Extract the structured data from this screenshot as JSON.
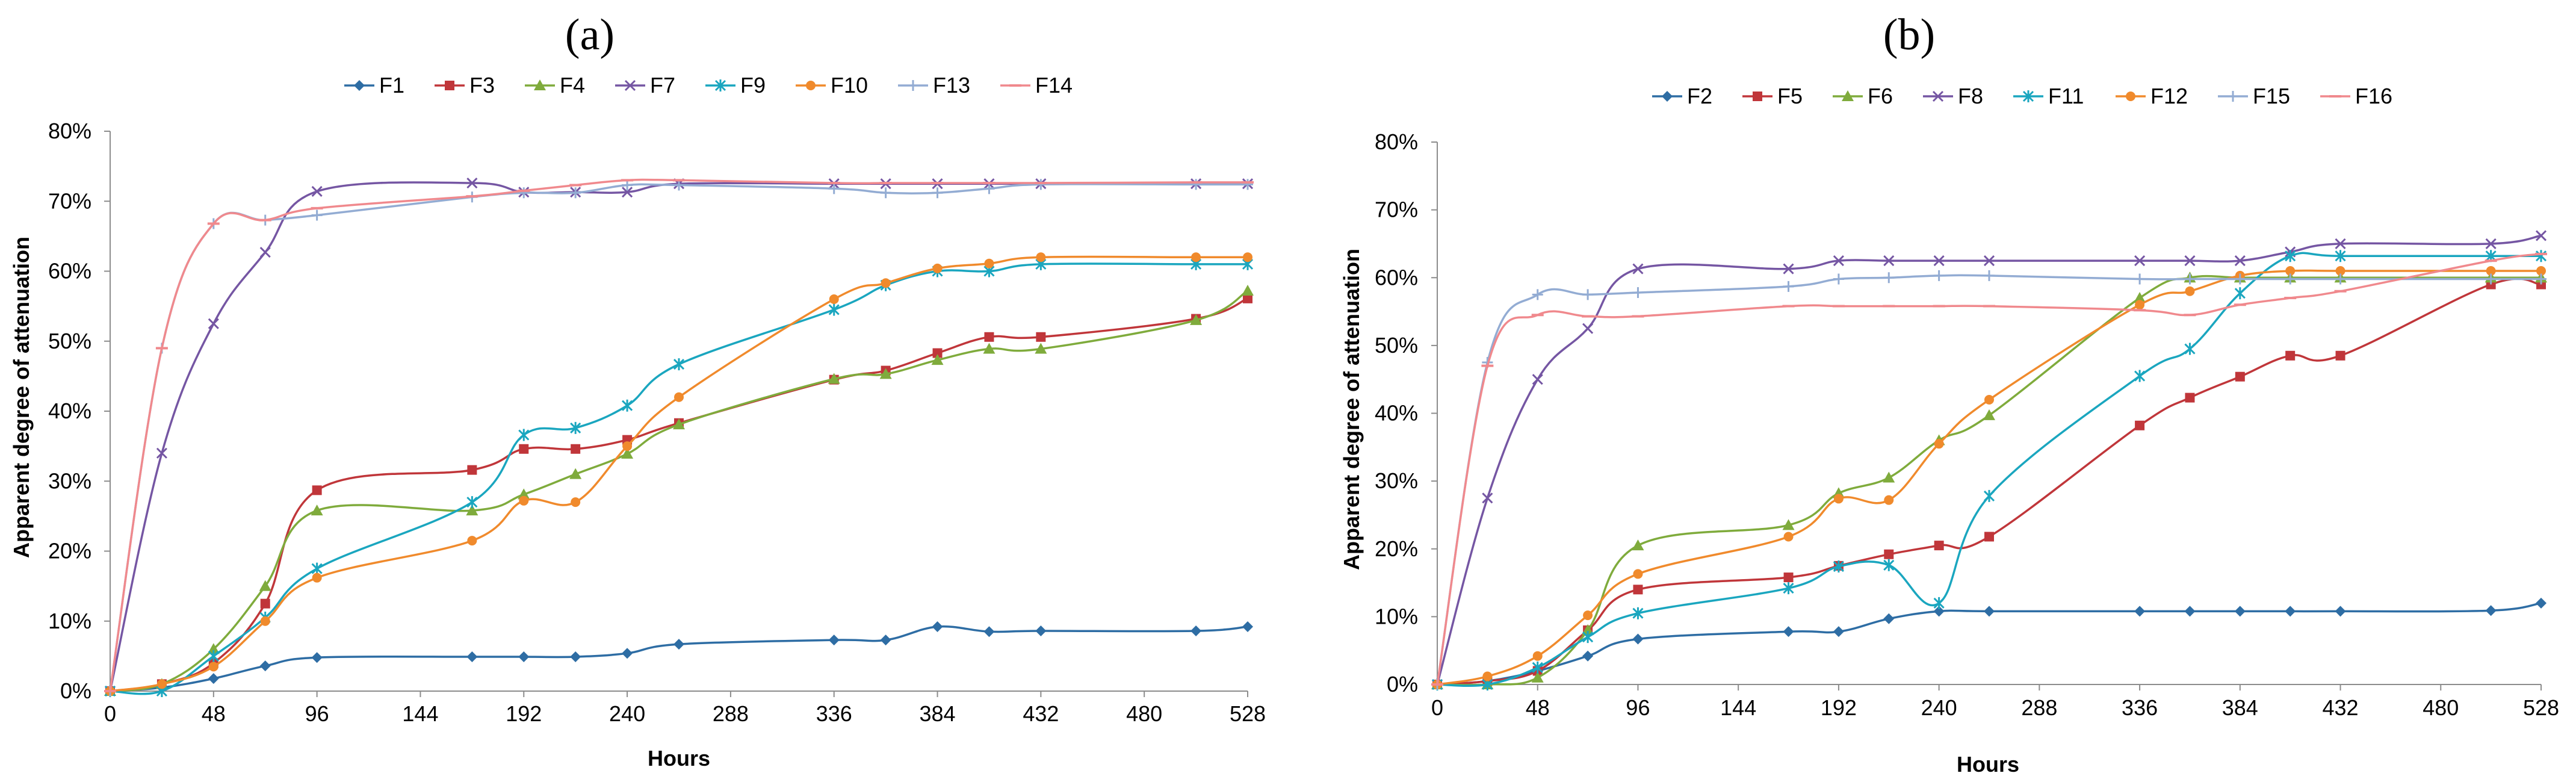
{
  "chart_data": [
    {
      "type": "line",
      "panel_label": "(a)",
      "title": "",
      "xlabel": "Hours",
      "ylabel": "Apparent degree of attenuation",
      "xlim": [
        0,
        528
      ],
      "ylim": [
        0,
        80
      ],
      "x_ticks": [
        "0",
        "48",
        "96",
        "144",
        "192",
        "240",
        "288",
        "336",
        "384",
        "432",
        "480",
        "528"
      ],
      "y_ticks": [
        "0%",
        "10%",
        "20%",
        "30%",
        "40%",
        "50%",
        "60%",
        "70%",
        "80%"
      ],
      "grid": false,
      "legend_position": "top",
      "series": [
        {
          "name": "F1",
          "color": "#2e6da4",
          "marker": "diamond",
          "x": [
            0,
            24,
            48,
            72,
            96,
            168,
            192,
            216,
            240,
            264,
            336,
            360,
            384,
            408,
            432,
            504,
            528
          ],
          "values": [
            0,
            0.5,
            1.8,
            3.6,
            4.8,
            4.9,
            4.9,
            4.9,
            5.4,
            6.7,
            7.3,
            7.3,
            9.2,
            8.5,
            8.6,
            8.6,
            9.2
          ]
        },
        {
          "name": "F3",
          "color": "#c0363a",
          "marker": "square",
          "x": [
            0,
            24,
            48,
            72,
            96,
            168,
            192,
            216,
            240,
            264,
            336,
            360,
            384,
            408,
            432,
            504,
            528
          ],
          "values": [
            0,
            1,
            4,
            12.5,
            28.7,
            31.6,
            34.6,
            34.6,
            35.9,
            38.3,
            44.5,
            45.8,
            48.3,
            50.6,
            50.6,
            53.2,
            56.1
          ]
        },
        {
          "name": "F4",
          "color": "#7fab3c",
          "marker": "triangle",
          "x": [
            0,
            24,
            48,
            72,
            96,
            168,
            192,
            216,
            240,
            264,
            336,
            360,
            384,
            408,
            432,
            504,
            528
          ],
          "values": [
            0,
            1,
            6,
            15,
            25.8,
            25.8,
            28.1,
            31,
            33.9,
            38.1,
            44.6,
            45.3,
            47.3,
            48.9,
            48.9,
            53,
            57.2
          ]
        },
        {
          "name": "F7",
          "color": "#7556a3",
          "marker": "x",
          "x": [
            0,
            24,
            48,
            72,
            96,
            168,
            192,
            216,
            240,
            264,
            336,
            360,
            384,
            408,
            432,
            504,
            528
          ],
          "values": [
            0,
            34,
            52.5,
            62.7,
            71.4,
            72.6,
            71.3,
            71.3,
            71.3,
            72.5,
            72.5,
            72.5,
            72.5,
            72.5,
            72.5,
            72.5,
            72.5
          ]
        },
        {
          "name": "F9",
          "color": "#1aa6bf",
          "marker": "asterisk",
          "x": [
            0,
            24,
            48,
            72,
            96,
            168,
            192,
            216,
            240,
            264,
            336,
            360,
            384,
            408,
            432,
            504,
            528
          ],
          "values": [
            0,
            0,
            5,
            10.5,
            17.5,
            27,
            36.6,
            37.6,
            40.8,
            46.7,
            54.5,
            58,
            60,
            60,
            61,
            61,
            61
          ]
        },
        {
          "name": "F10",
          "color": "#f08a2c",
          "marker": "circle",
          "x": [
            0,
            24,
            48,
            72,
            96,
            168,
            192,
            216,
            240,
            264,
            336,
            360,
            384,
            408,
            432,
            504,
            528
          ],
          "values": [
            0,
            1,
            3.5,
            10,
            16.2,
            21.5,
            27.2,
            27,
            35,
            42,
            56,
            58.3,
            60.4,
            61.1,
            62,
            62,
            62
          ]
        },
        {
          "name": "F13",
          "color": "#93acd3",
          "marker": "plus",
          "x": [
            0,
            24,
            48,
            72,
            96,
            168,
            192,
            216,
            240,
            264,
            336,
            360,
            384,
            408,
            432,
            504,
            528
          ],
          "values": [
            0,
            49,
            66.8,
            67.3,
            68,
            70.6,
            71.2,
            71.2,
            72.3,
            72.3,
            71.8,
            71.2,
            71.2,
            71.8,
            72.4,
            72.4,
            72.4
          ]
        },
        {
          "name": "F14",
          "color": "#f0898d",
          "marker": "dash",
          "x": [
            0,
            24,
            48,
            72,
            96,
            168,
            192,
            216,
            240,
            264,
            336,
            360,
            384,
            408,
            432,
            504,
            528
          ],
          "values": [
            0,
            49,
            66.8,
            67.3,
            69,
            70.7,
            71.5,
            72.3,
            73,
            73,
            72.6,
            72.6,
            72.6,
            72.6,
            72.6,
            72.7,
            72.7
          ]
        }
      ]
    },
    {
      "type": "line",
      "panel_label": "(b)",
      "title": "",
      "xlabel": "Hours",
      "ylabel": "Apparent degree of attenuation",
      "xlim": [
        0,
        528
      ],
      "ylim": [
        0,
        80
      ],
      "x_ticks": [
        "0",
        "48",
        "96",
        "144",
        "192",
        "240",
        "288",
        "336",
        "384",
        "432",
        "480",
        "528"
      ],
      "y_ticks": [
        "0%",
        "10%",
        "20%",
        "30%",
        "40%",
        "50%",
        "60%",
        "70%",
        "80%"
      ],
      "grid": false,
      "legend_position": "top",
      "series": [
        {
          "name": "F2",
          "color": "#2e6da4",
          "marker": "diamond",
          "x": [
            0,
            24,
            48,
            72,
            96,
            168,
            192,
            216,
            240,
            264,
            336,
            360,
            384,
            408,
            432,
            504,
            528
          ],
          "values": [
            0,
            0.5,
            2,
            4.2,
            6.7,
            7.8,
            7.8,
            9.7,
            10.8,
            10.8,
            10.8,
            10.8,
            10.8,
            10.8,
            10.8,
            10.9,
            12
          ]
        },
        {
          "name": "F5",
          "color": "#c0363a",
          "marker": "square",
          "x": [
            0,
            24,
            48,
            72,
            96,
            168,
            192,
            216,
            240,
            264,
            336,
            360,
            384,
            408,
            432,
            504,
            528
          ],
          "values": [
            0,
            0.5,
            2,
            8,
            14,
            15.8,
            17.5,
            19.2,
            20.5,
            21.8,
            38.2,
            42.3,
            45.4,
            48.5,
            48.5,
            59,
            59
          ]
        },
        {
          "name": "F6",
          "color": "#7fab3c",
          "marker": "triangle",
          "x": [
            0,
            24,
            48,
            72,
            96,
            168,
            192,
            216,
            240,
            264,
            336,
            360,
            384,
            408,
            432,
            504,
            528
          ],
          "values": [
            0,
            0,
            1,
            8,
            20.5,
            23.5,
            28.2,
            30.5,
            36,
            39.7,
            57,
            60,
            60,
            60,
            60,
            60,
            60
          ]
        },
        {
          "name": "F8",
          "color": "#7556a3",
          "marker": "x",
          "x": [
            0,
            24,
            48,
            72,
            96,
            168,
            192,
            216,
            240,
            264,
            336,
            360,
            384,
            408,
            432,
            504,
            528
          ],
          "values": [
            0,
            27.5,
            45,
            52.5,
            61.3,
            61.3,
            62.5,
            62.5,
            62.5,
            62.5,
            62.5,
            62.5,
            62.5,
            63.8,
            65,
            65,
            66.2
          ]
        },
        {
          "name": "F11",
          "color": "#1aa6bf",
          "marker": "asterisk",
          "x": [
            0,
            24,
            48,
            72,
            96,
            168,
            192,
            216,
            240,
            264,
            336,
            360,
            384,
            408,
            432,
            504,
            528
          ],
          "values": [
            0,
            0,
            2.5,
            7,
            10.5,
            14.2,
            17.4,
            17.6,
            12,
            27.8,
            45.5,
            49.5,
            57.7,
            63.2,
            63.2,
            63.2,
            63.2
          ]
        },
        {
          "name": "F12",
          "color": "#f08a2c",
          "marker": "circle",
          "x": [
            0,
            24,
            48,
            72,
            96,
            168,
            192,
            216,
            240,
            264,
            336,
            360,
            384,
            408,
            432,
            504,
            528
          ],
          "values": [
            0,
            1.2,
            4.2,
            10.2,
            16.3,
            21.8,
            27.4,
            27.2,
            35.5,
            42,
            56,
            58,
            60.3,
            61,
            61,
            61,
            61
          ]
        },
        {
          "name": "F15",
          "color": "#93acd3",
          "marker": "plus",
          "x": [
            0,
            24,
            48,
            72,
            96,
            168,
            192,
            216,
            240,
            264,
            336,
            360,
            384,
            408,
            432,
            504,
            528
          ],
          "values": [
            0,
            47.5,
            57.5,
            57.5,
            57.8,
            58.7,
            59.8,
            60,
            60.3,
            60.3,
            59.8,
            59.8,
            59.8,
            59.8,
            59.8,
            59.8,
            59.8
          ]
        },
        {
          "name": "F16",
          "color": "#f0898d",
          "marker": "dash",
          "x": [
            0,
            24,
            48,
            72,
            96,
            168,
            192,
            216,
            240,
            264,
            336,
            360,
            384,
            408,
            432,
            504,
            528
          ],
          "values": [
            0,
            47,
            54.5,
            54.3,
            54.3,
            55.8,
            55.8,
            55.8,
            55.8,
            55.8,
            55.2,
            54.5,
            56,
            57,
            58,
            62.5,
            63.5
          ]
        }
      ]
    }
  ]
}
